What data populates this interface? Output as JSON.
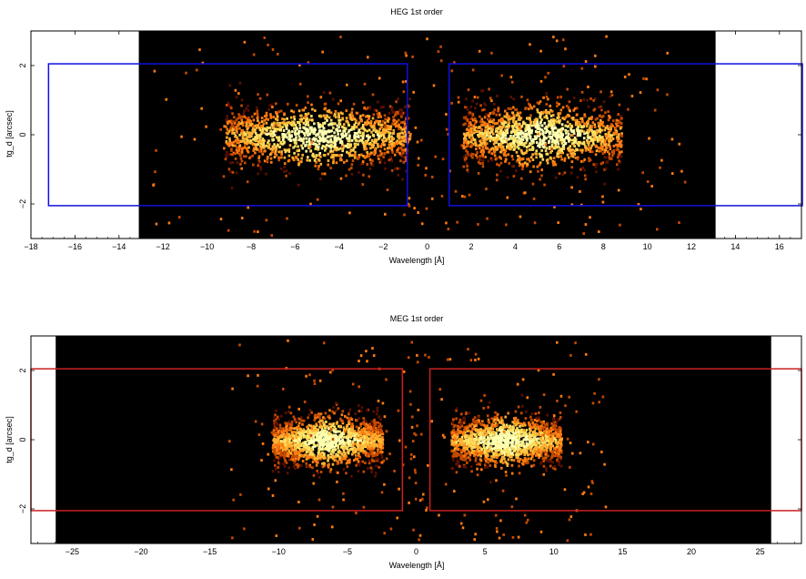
{
  "chart_data": [
    {
      "type": "heatmap",
      "title": "HEG 1st order",
      "xlabel": "Wavelength [Å]",
      "ylabel": "tg_d [arcsec]",
      "xlim": [
        -18,
        17
      ],
      "ylim": [
        -3,
        3
      ],
      "x_ticks": [
        -18,
        -16,
        -14,
        -12,
        -10,
        -8,
        -6,
        -4,
        -2,
        0,
        2,
        4,
        6,
        8,
        10,
        12,
        14,
        16
      ],
      "y_ticks": [
        -2,
        0,
        2
      ],
      "data_extent_x": [
        -13.1,
        13.1
      ],
      "background": "#000000",
      "region_color": "#1010e0",
      "regions": [
        {
          "x": [
            -17.2,
            -0.9
          ],
          "y": [
            -2.05,
            2.05
          ]
        },
        {
          "x": [
            1.0,
            17.2
          ],
          "y": [
            -2.05,
            2.05
          ]
        }
      ],
      "clusters": [
        {
          "x_center": -5.0,
          "x_halfwidth": 4.2,
          "y_sigma": 0.45,
          "density": "high"
        },
        {
          "x_center": 5.2,
          "x_halfwidth": 3.6,
          "y_sigma": 0.45,
          "density": "high"
        }
      ],
      "colormap": [
        "#5a1000",
        "#c44a00",
        "#ff7a10",
        "#ffb030",
        "#ffe060",
        "#ffffb0"
      ]
    },
    {
      "type": "heatmap",
      "title": "MEG 1st order",
      "xlabel": "Wavelength [Å]",
      "ylabel": "tg_d [arcsec]",
      "xlim": [
        -28,
        28
      ],
      "ylim": [
        -3,
        3
      ],
      "x_ticks": [
        -25,
        -20,
        -15,
        -10,
        -5,
        0,
        5,
        10,
        15,
        20,
        25
      ],
      "y_ticks": [
        -2,
        0,
        2
      ],
      "data_extent_x": [
        -26.2,
        25.8
      ],
      "background": "#000000",
      "region_color": "#cc2020",
      "regions": [
        {
          "x": [
            -28,
            -1.0
          ],
          "y": [
            -2.05,
            2.05
          ]
        },
        {
          "x": [
            1.0,
            28
          ],
          "y": [
            -2.05,
            2.05
          ]
        }
      ],
      "clusters": [
        {
          "x_center": -6.5,
          "x_halfwidth": 4.0,
          "y_sigma": 0.35,
          "density": "high"
        },
        {
          "x_center": 6.5,
          "x_halfwidth": 4.0,
          "y_sigma": 0.35,
          "density": "high"
        }
      ],
      "colormap": [
        "#5a1000",
        "#c44a00",
        "#ff7a10",
        "#ffb030",
        "#ffe060",
        "#ffffb0"
      ]
    }
  ]
}
